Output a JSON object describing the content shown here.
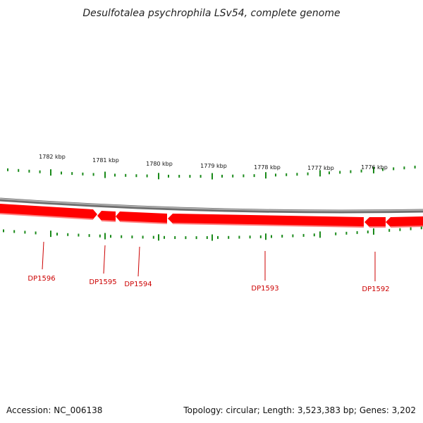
{
  "title": "Desulfotalea psychrophila LSv54, complete genome",
  "footer": {
    "accession": "Accession: NC_006138",
    "summary": "Topology: circular; Length: 3,523,383 bp; Genes: 3,202"
  },
  "ruler_labels": [
    "1782 kbp",
    "1781 kbp",
    "1780 kbp",
    "1779 kbp",
    "1778 kbp",
    "1777 kbp",
    "1776 kbp"
  ],
  "genes": [
    {
      "name": "DP1596",
      "strand": "forward"
    },
    {
      "name": "DP1595",
      "strand": "reverse"
    },
    {
      "name": "DP1594",
      "strand": "reverse"
    },
    {
      "name": "DP1593",
      "strand": "reverse"
    },
    {
      "name": "DP1592",
      "strand": "reverse"
    }
  ],
  "colors": {
    "gene_fill": "#ff0000",
    "gene_highlight": "#ff7a7a",
    "backbone": "#808080",
    "tick": "#1a8a1a",
    "gene_label": "#cc0000"
  }
}
